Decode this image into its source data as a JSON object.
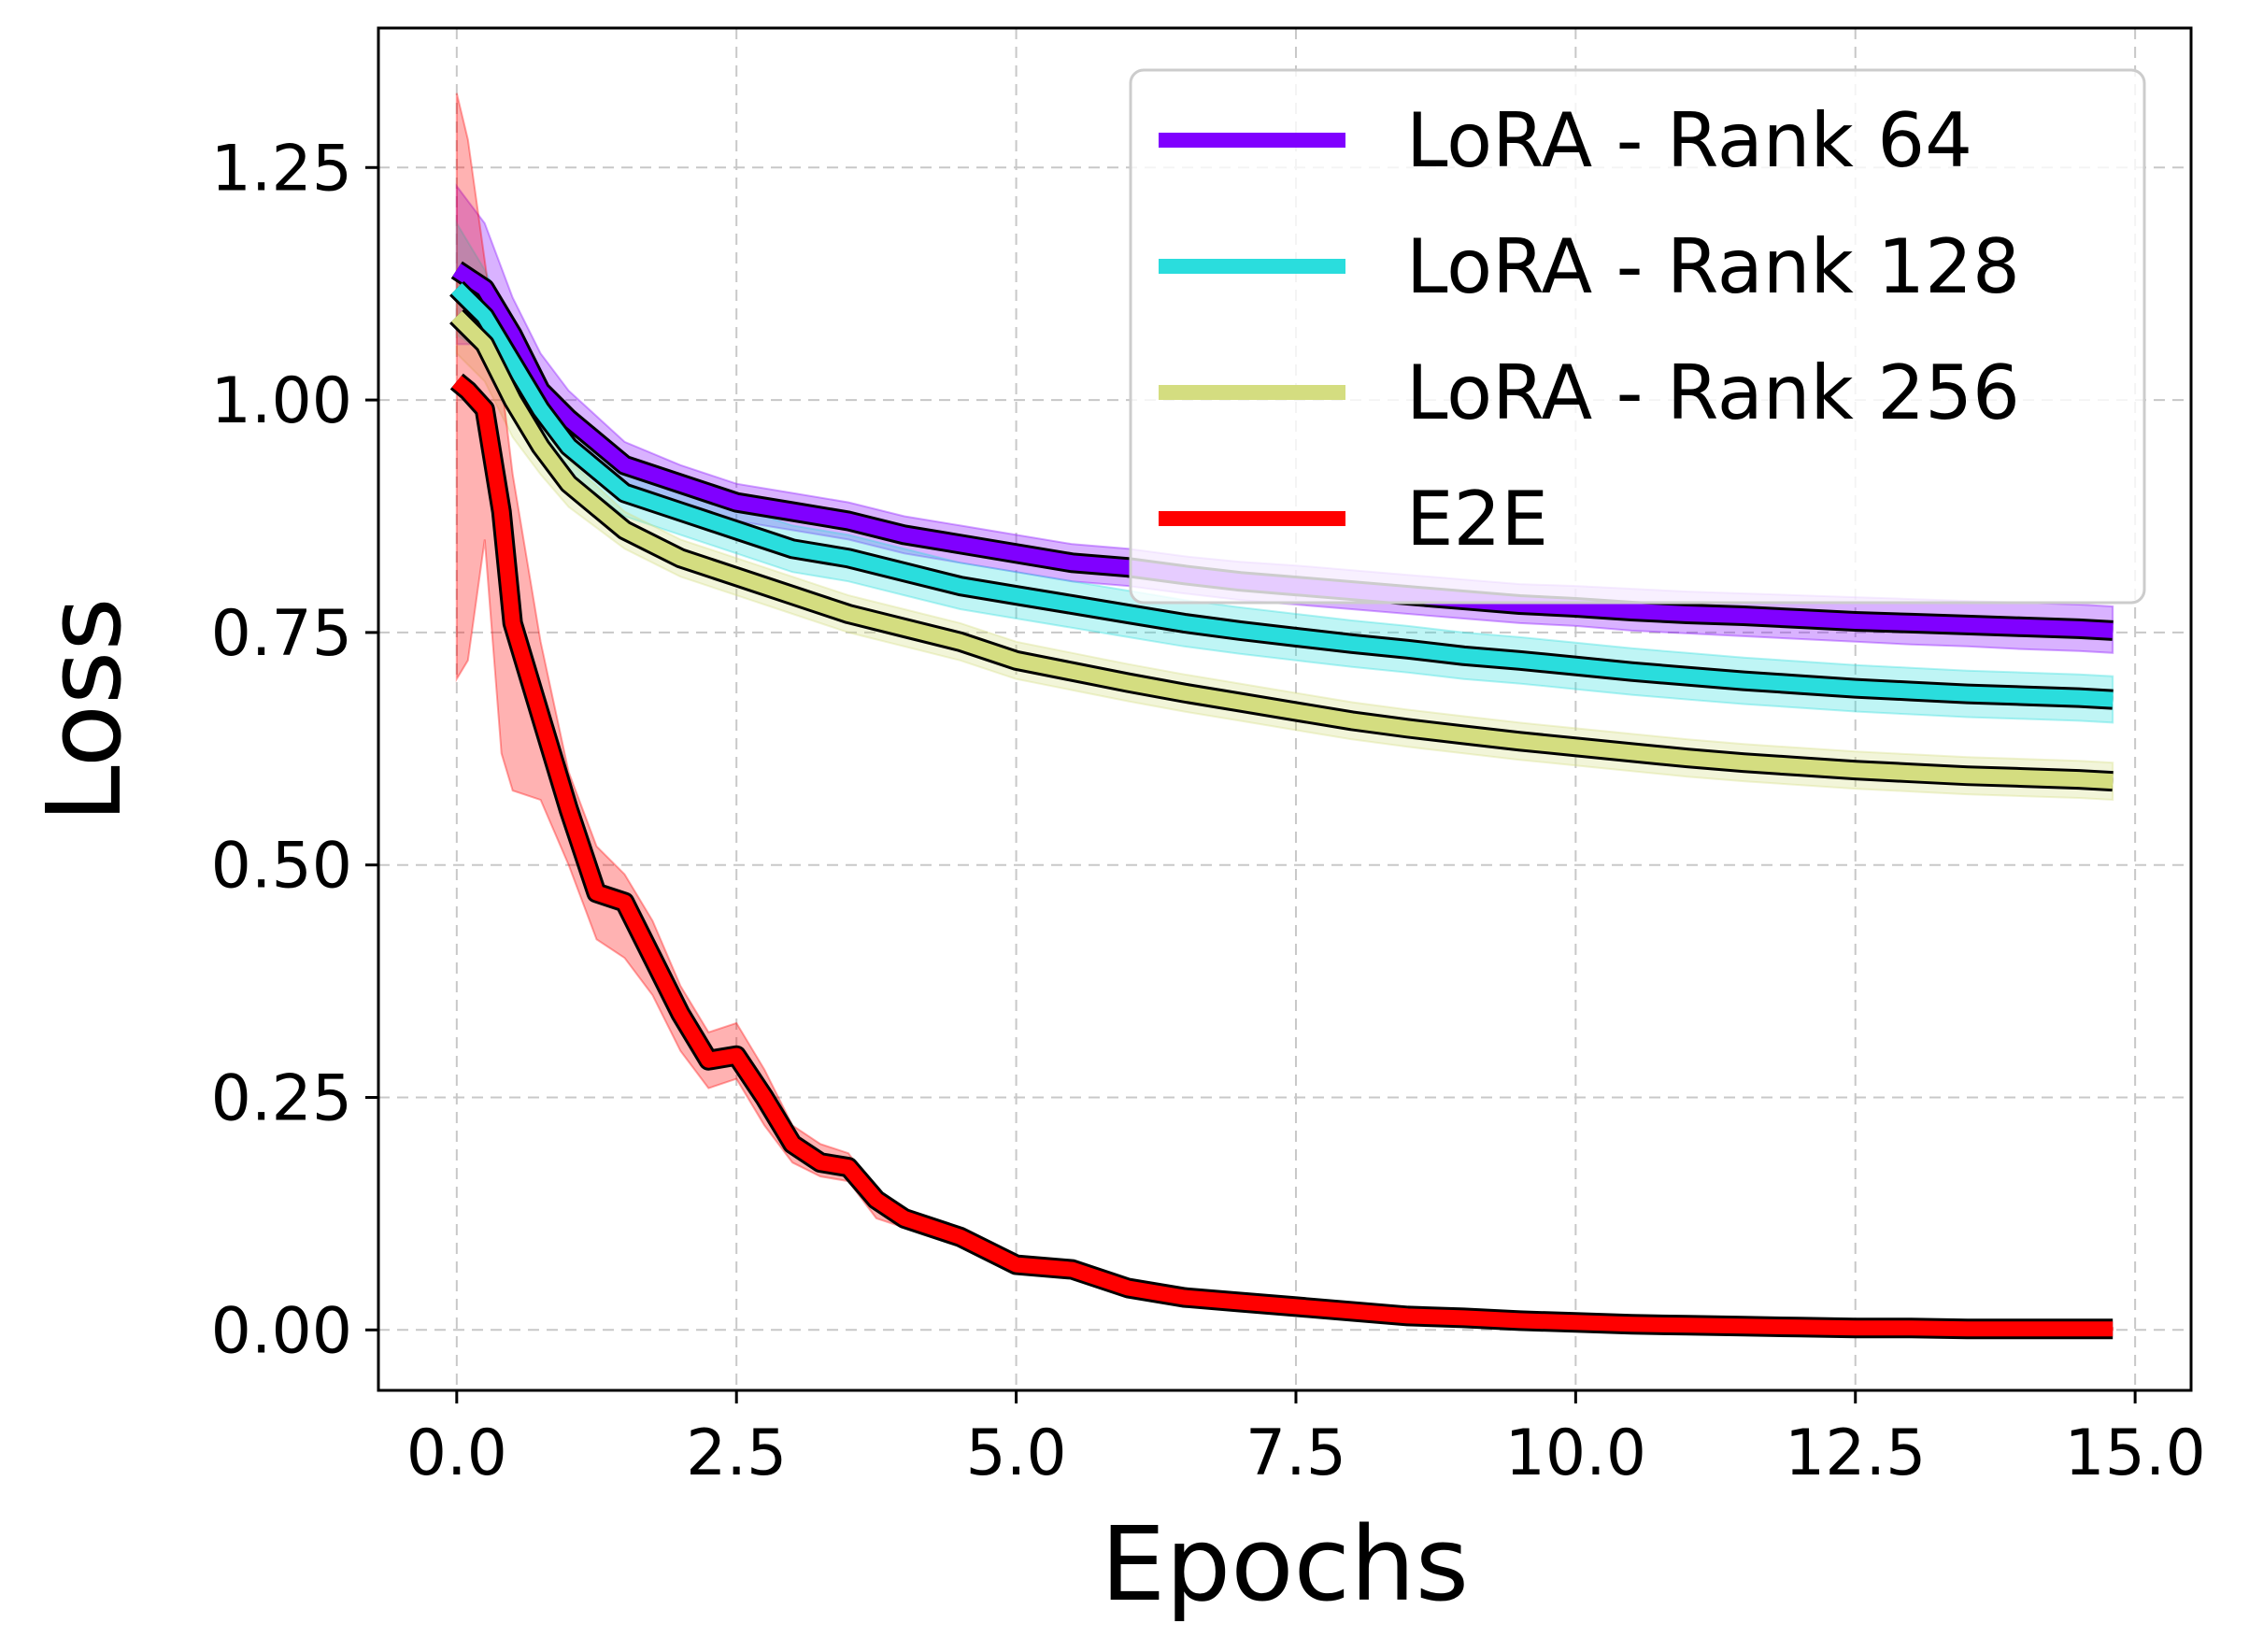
{
  "chart_data": {
    "type": "line",
    "title": "",
    "xlabel": "Epochs",
    "ylabel": "Loss",
    "xlim": [
      -0.7,
      15.5
    ],
    "ylim": [
      -0.065,
      1.4
    ],
    "xticks": [
      0.0,
      2.5,
      5.0,
      7.5,
      10.0,
      12.5,
      15.0
    ],
    "xtick_labels": [
      "0.0",
      "2.5",
      "5.0",
      "7.5",
      "10.0",
      "12.5",
      "15.0"
    ],
    "yticks": [
      0.0,
      0.25,
      0.5,
      0.75,
      1.0,
      1.25
    ],
    "ytick_labels": [
      "0.00",
      "0.25",
      "0.50",
      "0.75",
      "1.00",
      "1.25"
    ],
    "grid": true,
    "legend_position": "top-right",
    "series": [
      {
        "name": "LoRA - Rank 64",
        "color": "#8000ff",
        "x": [
          0.0,
          0.25,
          0.5,
          0.75,
          1.0,
          1.5,
          2.0,
          2.5,
          3.0,
          3.5,
          4.0,
          4.5,
          5.0,
          5.5,
          6.0,
          6.5,
          7.0,
          7.5,
          8.0,
          8.5,
          9.0,
          9.5,
          10.0,
          10.5,
          11.0,
          11.5,
          12.0,
          12.5,
          13.0,
          13.5,
          14.0,
          14.5,
          14.8
        ],
        "y": [
          1.14,
          1.12,
          1.07,
          1.01,
          0.98,
          0.93,
          0.91,
          0.89,
          0.88,
          0.87,
          0.855,
          0.845,
          0.835,
          0.825,
          0.82,
          0.812,
          0.805,
          0.8,
          0.795,
          0.79,
          0.785,
          0.78,
          0.777,
          0.773,
          0.77,
          0.768,
          0.765,
          0.762,
          0.76,
          0.758,
          0.756,
          0.754,
          0.752
        ],
        "lower": [
          1.06,
          1.06,
          1.02,
          0.97,
          0.95,
          0.91,
          0.89,
          0.87,
          0.86,
          0.85,
          0.835,
          0.825,
          0.815,
          0.805,
          0.8,
          0.792,
          0.785,
          0.78,
          0.775,
          0.77,
          0.765,
          0.76,
          0.757,
          0.752,
          0.749,
          0.746,
          0.743,
          0.74,
          0.737,
          0.735,
          0.732,
          0.73,
          0.728
        ],
        "upper": [
          1.23,
          1.19,
          1.11,
          1.05,
          1.01,
          0.955,
          0.93,
          0.91,
          0.9,
          0.89,
          0.875,
          0.865,
          0.855,
          0.845,
          0.84,
          0.832,
          0.826,
          0.822,
          0.817,
          0.812,
          0.807,
          0.802,
          0.8,
          0.797,
          0.794,
          0.792,
          0.79,
          0.788,
          0.786,
          0.784,
          0.782,
          0.78,
          0.778
        ]
      },
      {
        "name": "LoRA - Rank 128",
        "color": "#2adddd",
        "x": [
          0.0,
          0.25,
          0.5,
          0.75,
          1.0,
          1.5,
          2.0,
          2.5,
          3.0,
          3.5,
          4.0,
          4.5,
          5.0,
          5.5,
          6.0,
          6.5,
          7.0,
          7.5,
          8.0,
          8.5,
          9.0,
          9.5,
          10.0,
          10.5,
          11.0,
          11.5,
          12.0,
          12.5,
          13.0,
          13.5,
          14.0,
          14.5,
          14.8
        ],
        "y": [
          1.12,
          1.09,
          1.04,
          0.99,
          0.95,
          0.9,
          0.88,
          0.86,
          0.84,
          0.83,
          0.815,
          0.8,
          0.79,
          0.78,
          0.77,
          0.76,
          0.752,
          0.745,
          0.738,
          0.732,
          0.725,
          0.72,
          0.714,
          0.708,
          0.703,
          0.698,
          0.694,
          0.69,
          0.687,
          0.684,
          0.682,
          0.68,
          0.678
        ],
        "lower": [
          1.07,
          1.05,
          1.0,
          0.96,
          0.92,
          0.875,
          0.855,
          0.835,
          0.815,
          0.805,
          0.79,
          0.775,
          0.765,
          0.755,
          0.745,
          0.735,
          0.727,
          0.72,
          0.713,
          0.707,
          0.7,
          0.695,
          0.689,
          0.683,
          0.678,
          0.673,
          0.669,
          0.665,
          0.662,
          0.659,
          0.657,
          0.655,
          0.653
        ],
        "upper": [
          1.19,
          1.14,
          1.08,
          1.02,
          0.98,
          0.925,
          0.905,
          0.885,
          0.865,
          0.855,
          0.84,
          0.825,
          0.815,
          0.805,
          0.795,
          0.785,
          0.777,
          0.77,
          0.763,
          0.757,
          0.75,
          0.745,
          0.739,
          0.733,
          0.728,
          0.723,
          0.719,
          0.715,
          0.712,
          0.709,
          0.707,
          0.705,
          0.703
        ]
      },
      {
        "name": "LoRA - Rank 256",
        "color": "#d4dd80",
        "x": [
          0.0,
          0.25,
          0.5,
          0.75,
          1.0,
          1.5,
          2.0,
          2.5,
          3.0,
          3.5,
          4.0,
          4.5,
          5.0,
          5.5,
          6.0,
          6.5,
          7.0,
          7.5,
          8.0,
          8.5,
          9.0,
          9.5,
          10.0,
          10.5,
          11.0,
          11.5,
          12.0,
          12.5,
          13.0,
          13.5,
          14.0,
          14.5,
          14.8
        ],
        "y": [
          1.09,
          1.06,
          1.0,
          0.95,
          0.91,
          0.86,
          0.83,
          0.81,
          0.79,
          0.77,
          0.755,
          0.74,
          0.72,
          0.708,
          0.696,
          0.685,
          0.675,
          0.665,
          0.655,
          0.647,
          0.64,
          0.633,
          0.627,
          0.621,
          0.615,
          0.61,
          0.606,
          0.602,
          0.599,
          0.596,
          0.594,
          0.592,
          0.59
        ],
        "lower": [
          1.05,
          1.02,
          0.96,
          0.92,
          0.885,
          0.84,
          0.81,
          0.79,
          0.77,
          0.75,
          0.735,
          0.72,
          0.7,
          0.688,
          0.676,
          0.665,
          0.655,
          0.645,
          0.635,
          0.627,
          0.62,
          0.613,
          0.607,
          0.601,
          0.595,
          0.59,
          0.586,
          0.582,
          0.579,
          0.576,
          0.574,
          0.572,
          0.57
        ],
        "upper": [
          1.14,
          1.1,
          1.04,
          0.98,
          0.935,
          0.88,
          0.85,
          0.83,
          0.81,
          0.79,
          0.775,
          0.76,
          0.74,
          0.728,
          0.716,
          0.705,
          0.695,
          0.685,
          0.675,
          0.667,
          0.66,
          0.653,
          0.647,
          0.641,
          0.635,
          0.63,
          0.626,
          0.622,
          0.619,
          0.616,
          0.614,
          0.612,
          0.61
        ]
      },
      {
        "name": "E2E",
        "color": "#ff0000",
        "x": [
          0.0,
          0.1,
          0.25,
          0.4,
          0.5,
          0.75,
          1.0,
          1.25,
          1.5,
          1.75,
          2.0,
          2.25,
          2.5,
          2.75,
          3.0,
          3.25,
          3.5,
          3.75,
          4.0,
          4.5,
          5.0,
          5.5,
          6.0,
          6.5,
          7.0,
          7.5,
          8.0,
          8.5,
          9.0,
          9.5,
          10.0,
          10.5,
          11.0,
          11.5,
          12.0,
          12.5,
          13.0,
          13.5,
          14.0,
          14.5,
          14.8
        ],
        "y": [
          1.02,
          1.01,
          0.99,
          0.88,
          0.76,
          0.66,
          0.56,
          0.47,
          0.46,
          0.4,
          0.34,
          0.29,
          0.295,
          0.25,
          0.2,
          0.18,
          0.175,
          0.14,
          0.12,
          0.1,
          0.07,
          0.065,
          0.045,
          0.035,
          0.03,
          0.025,
          0.02,
          0.015,
          0.013,
          0.01,
          0.008,
          0.006,
          0.005,
          0.004,
          0.003,
          0.002,
          0.002,
          0.001,
          0.001,
          0.001,
          0.001
        ],
        "lower": [
          0.7,
          0.72,
          0.85,
          0.62,
          0.58,
          0.57,
          0.5,
          0.42,
          0.4,
          0.36,
          0.3,
          0.26,
          0.27,
          0.22,
          0.18,
          0.165,
          0.16,
          0.12,
          0.11,
          0.09,
          0.065,
          0.06,
          0.04,
          0.032,
          0.028,
          0.023,
          0.018,
          0.014,
          0.012,
          0.009,
          0.007,
          0.005,
          0.004,
          0.003,
          0.002,
          0.001,
          0.001,
          0.0,
          0.0,
          0.0,
          0.0
        ],
        "upper": [
          1.33,
          1.28,
          1.15,
          1.02,
          0.92,
          0.74,
          0.6,
          0.52,
          0.49,
          0.44,
          0.37,
          0.32,
          0.33,
          0.28,
          0.22,
          0.2,
          0.19,
          0.15,
          0.13,
          0.11,
          0.075,
          0.07,
          0.05,
          0.04,
          0.034,
          0.028,
          0.022,
          0.017,
          0.015,
          0.012,
          0.01,
          0.008,
          0.007,
          0.006,
          0.005,
          0.004,
          0.003,
          0.002,
          0.002,
          0.002,
          0.002
        ]
      }
    ]
  }
}
